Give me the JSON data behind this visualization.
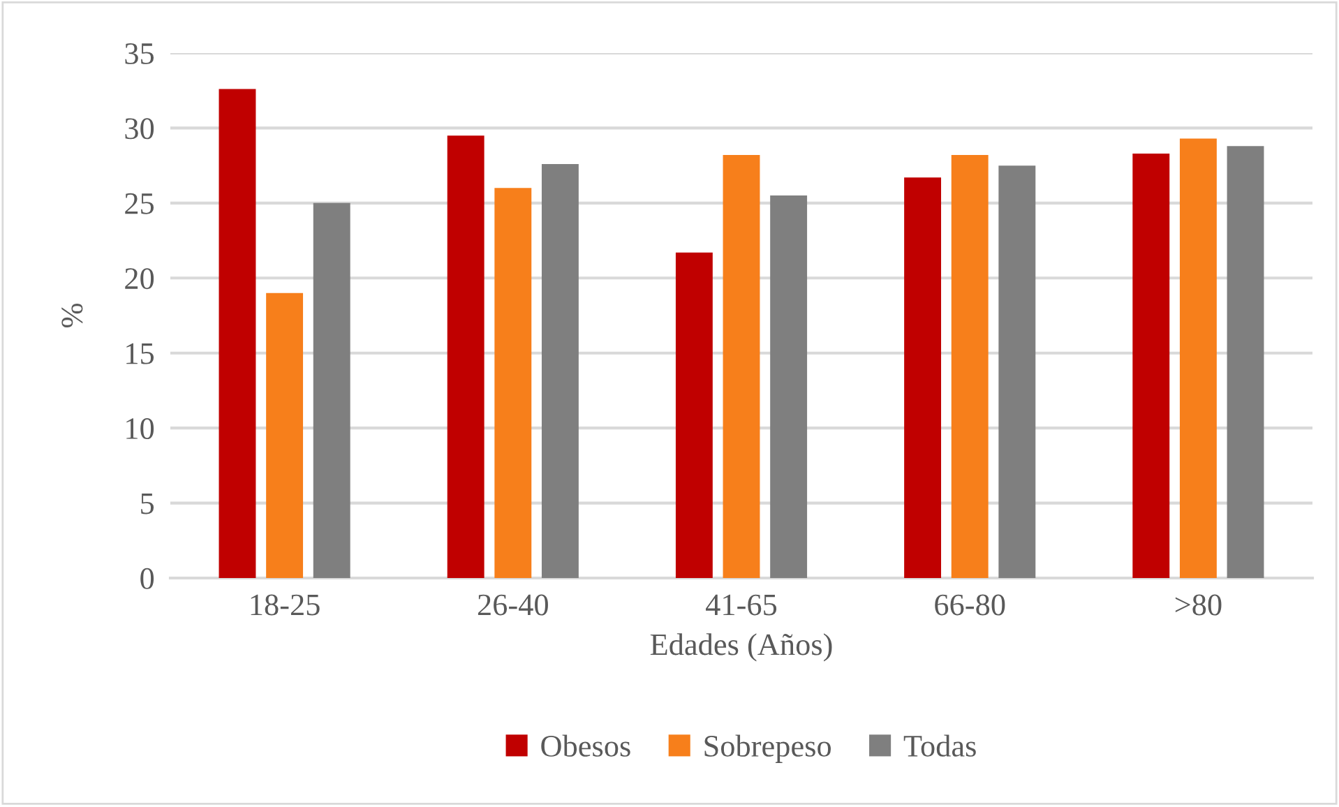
{
  "chart_data": {
    "type": "bar",
    "xlabel": "Edades (Años)",
    "ylabel": "%",
    "categories": [
      "18-25",
      "26-40",
      "41-65",
      "66-80",
      ">80"
    ],
    "series": [
      {
        "name": "Obesos",
        "color": "#c00000",
        "values": [
          32.6,
          29.5,
          21.7,
          26.7,
          28.3
        ]
      },
      {
        "name": "Sobrepeso",
        "color": "#f77f1b",
        "values": [
          19.0,
          26.0,
          28.2,
          28.2,
          29.3
        ]
      },
      {
        "name": "Todas",
        "color": "#7f7f7f",
        "values": [
          25.0,
          27.6,
          25.5,
          27.5,
          28.8
        ]
      }
    ],
    "ylim": [
      0,
      35
    ],
    "yticks": [
      0,
      5,
      10,
      15,
      20,
      25,
      30,
      35
    ],
    "grid": "y",
    "legend": "bottom"
  }
}
